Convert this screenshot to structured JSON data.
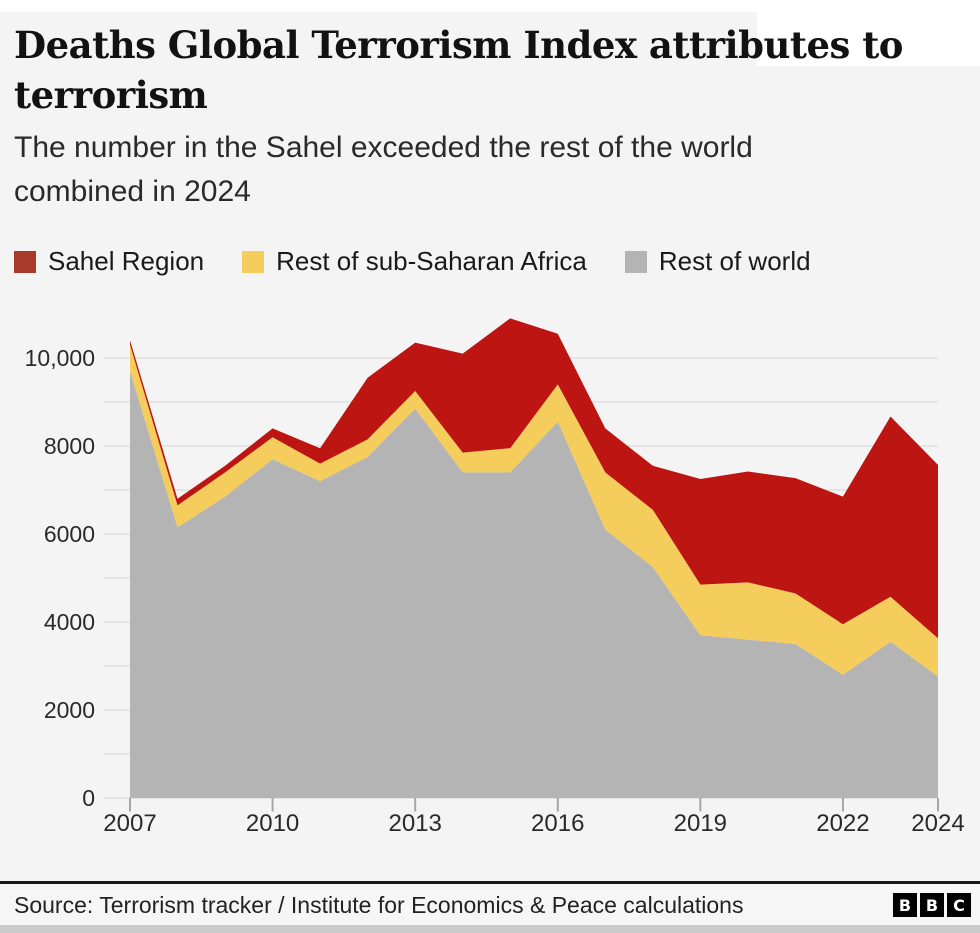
{
  "header": {
    "title_line1": "Deaths Global Terrorism Index attributes to",
    "title_line2": "terrorism",
    "subtitle_line1": "The number in the Sahel exceeded the rest of the world",
    "subtitle_line2": "combined in 2024"
  },
  "legend": {
    "items": [
      {
        "label": "Sahel Region",
        "color": "#a83a29"
      },
      {
        "label": "Rest of sub-Saharan Africa",
        "color": "#f5cd5c"
      },
      {
        "label": "Rest of world",
        "color": "#b4b4b4"
      }
    ]
  },
  "chart_data": {
    "type": "area",
    "stacked": true,
    "title": "Deaths Global Terrorism Index attributes to terrorism",
    "xlabel": "",
    "ylabel": "",
    "x": [
      2007,
      2008,
      2009,
      2010,
      2011,
      2012,
      2013,
      2014,
      2015,
      2016,
      2017,
      2018,
      2019,
      2020,
      2021,
      2022,
      2023,
      2024
    ],
    "series": [
      {
        "name": "Rest of world",
        "color": "#b4b4b4",
        "values": [
          9700,
          6150,
          6850,
          7700,
          7200,
          7750,
          8850,
          7400,
          7400,
          8550,
          6100,
          5250,
          3700,
          3600,
          3500,
          2800,
          3550,
          2760
        ]
      },
      {
        "name": "Rest of sub-Saharan Africa",
        "color": "#f5cd5c",
        "values": [
          600,
          500,
          550,
          500,
          400,
          400,
          400,
          450,
          550,
          850,
          1300,
          1300,
          1150,
          1300,
          1150,
          1150,
          1025,
          870
        ]
      },
      {
        "name": "Sahel Region",
        "color": "#bd1511",
        "values": [
          100,
          150,
          150,
          200,
          350,
          1400,
          1100,
          2250,
          2950,
          1150,
          1000,
          1000,
          2400,
          2520,
          2620,
          2900,
          4095,
          3940
        ]
      }
    ],
    "totals": [
      10400,
      6800,
      7550,
      8400,
      7950,
      9550,
      10350,
      10100,
      10900,
      10550,
      8400,
      7550,
      7250,
      7420,
      7270,
      6850,
      8670,
      7570
    ],
    "ylim": [
      0,
      10900
    ],
    "yticks": [
      {
        "value": 0,
        "label": "0"
      },
      {
        "value": 2000,
        "label": "2000"
      },
      {
        "value": 4000,
        "label": "4000"
      },
      {
        "value": 6000,
        "label": "6000"
      },
      {
        "value": 8000,
        "label": "8000"
      },
      {
        "value": 10000,
        "label": "10,000"
      }
    ],
    "xticks": [
      2007,
      2010,
      2013,
      2016,
      2019,
      2022,
      2024
    ],
    "grid": "horizontal, every 1000",
    "legend_position": "top"
  },
  "footer": {
    "source": "Source: Terrorism tracker / Institute for Economics & Peace calculations",
    "logo_letters": [
      "B",
      "B",
      "C"
    ]
  },
  "colors": {
    "page": "#ffffff",
    "background": "#f4f4f4",
    "gridline": "#e0e0e0",
    "tick": "#a6a6a6",
    "title_text": "#121212",
    "axis_text": "#2a2a2a",
    "footer_rule": "#1a1a1a",
    "right_edge": "#3c3c3c",
    "bottom_strip": "#cbcbcb"
  }
}
